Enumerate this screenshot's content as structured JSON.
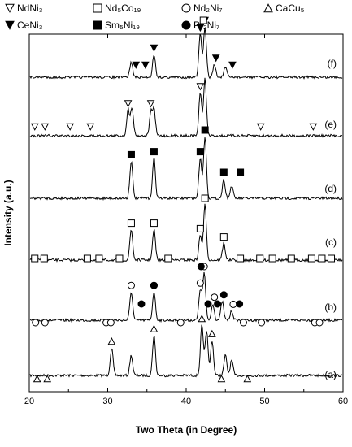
{
  "chart_data": {
    "type": "line",
    "xlabel": "Two Theta (in Degree)",
    "ylabel": "Intensity (a.u.)",
    "xlim": [
      20,
      60
    ],
    "xticks": [
      20,
      30,
      40,
      50,
      60
    ],
    "legend": [
      {
        "name": "NdNi₃",
        "marker": "triangle-down-open"
      },
      {
        "name": "Nd₅Co₁₉",
        "marker": "square-open"
      },
      {
        "name": "Nd₂Ni₇",
        "marker": "circle-open"
      },
      {
        "name": "CaCu₅",
        "marker": "triangle-up-open"
      },
      {
        "name": "CeNi₃",
        "marker": "triangle-down-filled"
      },
      {
        "name": "Sm₅Ni₁₉",
        "marker": "square-filled"
      },
      {
        "name": "Pr₂Ni₇",
        "marker": "circle-filled"
      }
    ],
    "series": [
      {
        "name": "(a)",
        "peaks": [
          [
            30.5,
            0.55
          ],
          [
            33.0,
            0.4
          ],
          [
            35.9,
            0.8
          ],
          [
            42.0,
            1.0
          ],
          [
            42.6,
            0.9
          ],
          [
            43.3,
            0.7
          ],
          [
            45.0,
            0.4
          ],
          [
            45.8,
            0.3
          ]
        ],
        "markers": [
          {
            "type": "triangle-up-open",
            "x": [
              21.0,
              22.3,
              30.5,
              35.9,
              42.0,
              43.3,
              44.5,
              47.8
            ]
          }
        ]
      },
      {
        "name": "(b)",
        "peaks": [
          [
            33.0,
            0.6
          ],
          [
            35.9,
            0.6
          ],
          [
            41.8,
            0.65
          ],
          [
            42.3,
            1.0
          ],
          [
            43.4,
            0.35
          ],
          [
            44.6,
            0.4
          ],
          [
            45.8,
            0.2
          ]
        ],
        "markers": [
          {
            "type": "circle-open",
            "x": [
              20.8,
              22.0,
              29.8,
              30.4,
              33.0,
              35.9,
              39.3,
              41.8,
              42.3,
              43.6,
              46.0,
              47.3,
              49.6,
              56.4,
              57.0
            ]
          },
          {
            "type": "circle-filled",
            "x": [
              34.3,
              35.9,
              41.9,
              42.8,
              44.0,
              44.8,
              46.8
            ]
          }
        ]
      },
      {
        "name": "(c)",
        "peaks": [
          [
            33.0,
            0.55
          ],
          [
            35.9,
            0.55
          ],
          [
            41.8,
            0.45
          ],
          [
            42.4,
            1.0
          ],
          [
            44.8,
            0.3
          ]
        ],
        "markers": [
          {
            "type": "square-open",
            "x": [
              20.7,
              21.9,
              27.4,
              28.9,
              31.5,
              33.0,
              35.9,
              37.7,
              41.8,
              42.4,
              44.8,
              46.9,
              49.4,
              51.0,
              53.4,
              56.0,
              57.3,
              58.5
            ]
          }
        ]
      },
      {
        "name": "(d)",
        "peaks": [
          [
            33.0,
            0.6
          ],
          [
            35.9,
            0.65
          ],
          [
            41.8,
            0.65
          ],
          [
            42.4,
            1.0
          ],
          [
            44.8,
            0.3
          ],
          [
            45.8,
            0.2
          ]
        ],
        "markers": [
          {
            "type": "square-filled",
            "x": [
              33.0,
              35.9,
              41.8,
              42.4,
              44.8,
              46.9
            ]
          }
        ]
      },
      {
        "name": "(e)",
        "peaks": [
          [
            32.6,
            0.45
          ],
          [
            33.1,
            0.5
          ],
          [
            35.5,
            0.4
          ],
          [
            35.9,
            0.45
          ],
          [
            41.8,
            0.75
          ],
          [
            42.4,
            1.0
          ]
        ],
        "markers": [
          {
            "type": "triangle-down-open",
            "x": [
              20.7,
              22.0,
              25.2,
              27.8,
              32.6,
              35.5,
              41.8,
              49.5,
              56.2
            ]
          }
        ]
      },
      {
        "name": "(f)",
        "peaks": [
          [
            33.0,
            0.3
          ],
          [
            35.9,
            0.45
          ],
          [
            41.8,
            0.85
          ],
          [
            42.4,
            1.0
          ],
          [
            43.6,
            0.25
          ],
          [
            45.0,
            0.2
          ]
        ],
        "markers": [
          {
            "type": "triangle-down-filled",
            "x": [
              33.6,
              34.8,
              35.9,
              41.8,
              42.4,
              43.8,
              45.9
            ]
          },
          {
            "type": "square-open",
            "x": [
              42.2
            ]
          }
        ]
      }
    ]
  }
}
